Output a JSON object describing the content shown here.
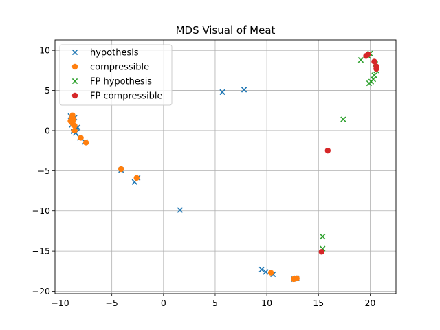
{
  "chart_data": {
    "type": "scatter",
    "title": "MDS Visual of Meat",
    "xlabel": "",
    "ylabel": "",
    "xlim": [
      -10.5,
      22.5
    ],
    "ylim": [
      -20.3,
      11.3
    ],
    "xticks": [
      -10,
      -5,
      0,
      5,
      10,
      15,
      20
    ],
    "yticks": [
      -20,
      -15,
      -10,
      -5,
      0,
      5,
      10
    ],
    "xtick_labels": [
      "−10",
      "−5",
      "0",
      "5",
      "10",
      "15",
      "20"
    ],
    "ytick_labels": [
      "−20",
      "−15",
      "−10",
      "−5",
      "0",
      "5",
      "10"
    ],
    "grid": true,
    "legend_position": "top-left",
    "series": [
      {
        "name": "hypothesis",
        "marker": "x",
        "color": "#1f77b4",
        "points": [
          [
            -9.0,
            1.8
          ],
          [
            -8.8,
            1.2
          ],
          [
            -8.6,
            0.3
          ],
          [
            -8.4,
            0.3
          ],
          [
            -8.7,
            -0.1
          ],
          [
            -8.5,
            -0.3
          ],
          [
            -8.3,
            0.4
          ],
          [
            -8.9,
            0.7
          ],
          [
            -8.6,
            1.6
          ],
          [
            -8.1,
            -0.9
          ],
          [
            -7.6,
            -1.4
          ],
          [
            -4.1,
            -4.9
          ],
          [
            -2.8,
            -6.4
          ],
          [
            -2.5,
            -5.9
          ],
          [
            1.6,
            -9.9
          ],
          [
            5.7,
            4.8
          ],
          [
            7.8,
            5.1
          ],
          [
            9.5,
            -17.3
          ],
          [
            9.9,
            -17.6
          ],
          [
            10.6,
            -17.9
          ],
          [
            12.6,
            -18.5
          ],
          [
            12.9,
            -18.4
          ]
        ]
      },
      {
        "name": "compressible",
        "marker": "o",
        "color": "#ff7f0e",
        "points": [
          [
            -8.8,
            1.9
          ],
          [
            -8.9,
            1.5
          ],
          [
            -9.0,
            1.2
          ],
          [
            -8.7,
            1.4
          ],
          [
            -8.8,
            0.9
          ],
          [
            -8.6,
            0.6
          ],
          [
            -8.6,
            0.0
          ],
          [
            -8.0,
            -0.9
          ],
          [
            -7.5,
            -1.5
          ],
          [
            -4.1,
            -4.8
          ],
          [
            -2.6,
            -5.9
          ],
          [
            10.4,
            -17.7
          ],
          [
            12.6,
            -18.5
          ],
          [
            12.9,
            -18.4
          ]
        ]
      },
      {
        "name": "FP hypothesis",
        "marker": "x",
        "color": "#2ca02c",
        "points": [
          [
            19.1,
            8.8
          ],
          [
            19.8,
            9.3
          ],
          [
            20.0,
            9.6
          ],
          [
            20.5,
            8.3
          ],
          [
            20.6,
            7.5
          ],
          [
            20.4,
            6.9
          ],
          [
            20.3,
            6.4
          ],
          [
            20.1,
            6.1
          ],
          [
            19.9,
            5.9
          ],
          [
            17.4,
            1.4
          ],
          [
            15.4,
            -13.2
          ],
          [
            15.4,
            -14.7
          ]
        ]
      },
      {
        "name": "FP compressible",
        "marker": "o",
        "color": "#d62728",
        "points": [
          [
            19.6,
            9.3
          ],
          [
            19.8,
            9.5
          ],
          [
            20.4,
            8.6
          ],
          [
            20.6,
            8.0
          ],
          [
            20.6,
            7.7
          ],
          [
            15.9,
            -2.5
          ],
          [
            15.3,
            -15.1
          ]
        ]
      }
    ]
  }
}
